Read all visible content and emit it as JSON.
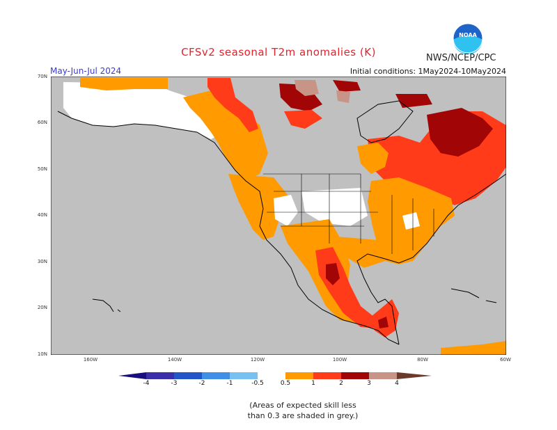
{
  "title": "CFSv2 seasonal T2m anomalies (K)",
  "agency": "NWS/NCEP/CPC",
  "logo_text": "NOAA",
  "season": "May-Jun-Jul 2024",
  "initial_conditions": "Initial conditions: 1May2024-10May2024",
  "lat_labels": [
    "70N",
    "60N",
    "50N",
    "40N",
    "30N",
    "20N",
    "10N"
  ],
  "lon_labels": [
    "160W",
    "140W",
    "120W",
    "100W",
    "80W",
    "60W"
  ],
  "colorbar": {
    "labels": [
      "-4",
      "-3",
      "-2",
      "-1",
      "-0.5",
      "0.5",
      "1",
      "2",
      "3",
      "4"
    ],
    "colors": [
      "#3a2fa8",
      "#2455c8",
      "#3f8fe6",
      "#78bff2",
      "#ffffff",
      "#ff9a00",
      "#ff3b1a",
      "#a10505",
      "#c99488",
      "#6b3a2a"
    ]
  },
  "note_line1": "(Areas of expected skill less",
  "note_line2": "than 0.3 are shaded in grey.)",
  "colors": {
    "skill_grey": "#c0c0c0",
    "no_anomaly_white": "#ffffff",
    "anom_0_5_to_1": "#ff9a00",
    "anom_1_to_2": "#ff3b1a",
    "anom_2_to_3": "#a10505",
    "anom_3_to_4": "#c99488"
  }
}
